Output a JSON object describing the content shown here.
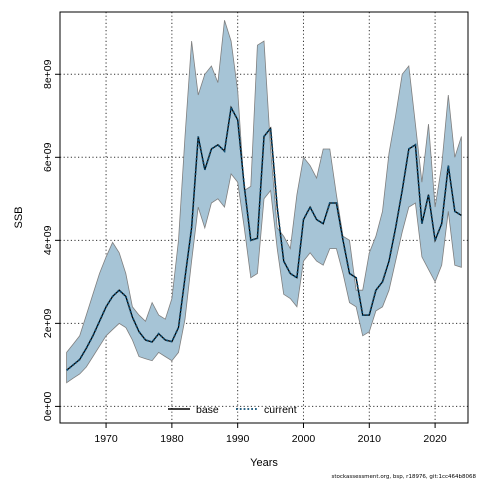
{
  "chart_data": {
    "type": "area",
    "xlabel": "Years",
    "ylabel": "SSB",
    "xlim": [
      1963,
      2025
    ],
    "ylim": [
      -400000000,
      9500000000
    ],
    "x_ticks": [
      1970,
      1980,
      1990,
      2000,
      2010,
      2020
    ],
    "x_tick_labels": [
      "1970",
      "1980",
      "1990",
      "2000",
      "2010",
      "2020"
    ],
    "y_ticks": [
      0,
      2000000000,
      4000000000,
      6000000000,
      8000000000
    ],
    "y_tick_labels": [
      "0e+00",
      "2e+09",
      "4e+09",
      "6e+09",
      "8e+09"
    ],
    "grid": true,
    "legend": {
      "placement": "bottom-center",
      "entries": [
        {
          "label": "base",
          "color": "#000000",
          "style": "solid"
        },
        {
          "label": "current",
          "color": "#0d4d73",
          "style": "dotted"
        }
      ]
    },
    "band_color": "#a6c4d6",
    "band_edge_color": "#7f7f7f",
    "x": [
      1964,
      1965,
      1966,
      1967,
      1968,
      1969,
      1970,
      1971,
      1972,
      1973,
      1974,
      1975,
      1976,
      1977,
      1978,
      1979,
      1980,
      1981,
      1982,
      1983,
      1984,
      1985,
      1986,
      1987,
      1988,
      1989,
      1990,
      1991,
      1992,
      1993,
      1994,
      1995,
      1996,
      1997,
      1998,
      1999,
      2000,
      2001,
      2002,
      2003,
      2004,
      2005,
      2006,
      2007,
      2008,
      2009,
      2010,
      2011,
      2012,
      2013,
      2014,
      2015,
      2016,
      2017,
      2018,
      2019,
      2020,
      2021,
      2022,
      2023,
      2024
    ],
    "series": [
      {
        "name": "base",
        "style": "solid",
        "color": "#000000",
        "values": [
          870000000,
          1000000000,
          1130000000,
          1400000000,
          1700000000,
          2050000000,
          2400000000,
          2650000000,
          2800000000,
          2650000000,
          2150000000,
          1800000000,
          1600000000,
          1550000000,
          1750000000,
          1600000000,
          1560000000,
          1900000000,
          3100000000,
          4300000000,
          6500000000,
          5700000000,
          6200000000,
          6300000000,
          6150000000,
          7200000000,
          6900000000,
          5300000000,
          4000000000,
          4050000000,
          6500000000,
          6700000000,
          4800000000,
          3500000000,
          3200000000,
          3100000000,
          4500000000,
          4800000000,
          4500000000,
          4400000000,
          4900000000,
          4900000000,
          4000000000,
          3200000000,
          3100000000,
          2200000000,
          2200000000,
          2800000000,
          3000000000,
          3500000000,
          4300000000,
          5200000000,
          6200000000,
          6300000000,
          4400000000,
          5100000000,
          4000000000,
          4400000000,
          5800000000,
          4700000000,
          4600000000
        ]
      },
      {
        "name": "current",
        "style": "dotted",
        "color": "#0d4d73",
        "values": [
          870000000,
          1000000000,
          1130000000,
          1400000000,
          1700000000,
          2050000000,
          2400000000,
          2650000000,
          2800000000,
          2650000000,
          2150000000,
          1800000000,
          1600000000,
          1550000000,
          1750000000,
          1600000000,
          1560000000,
          1900000000,
          3100000000,
          4300000000,
          6500000000,
          5700000000,
          6200000000,
          6300000000,
          6150000000,
          7200000000,
          6900000000,
          5300000000,
          4000000000,
          4050000000,
          6500000000,
          6700000000,
          4800000000,
          3500000000,
          3200000000,
          3100000000,
          4500000000,
          4800000000,
          4500000000,
          4400000000,
          4900000000,
          4900000000,
          4000000000,
          3200000000,
          3100000000,
          2200000000,
          2200000000,
          2800000000,
          3000000000,
          3500000000,
          4300000000,
          5200000000,
          6200000000,
          6300000000,
          4400000000,
          5100000000,
          4000000000,
          4400000000,
          5800000000,
          4700000000,
          4600000000
        ]
      },
      {
        "name": "upper",
        "values": [
          1300000000,
          1500000000,
          1700000000,
          2200000000,
          2700000000,
          3200000000,
          3600000000,
          3950000000,
          3700000000,
          3200000000,
          2400000000,
          2200000000,
          2050000000,
          2500000000,
          2200000000,
          2100000000,
          2600000000,
          4000000000,
          6500000000,
          8800000000,
          7500000000,
          8000000000,
          8200000000,
          7800000000,
          9300000000,
          8800000000,
          7600000000,
          5200000000,
          5300000000,
          8700000000,
          8800000000,
          6200000000,
          4300000000,
          4100000000,
          3800000000,
          5100000000,
          6000000000,
          5800000000,
          5500000000,
          6200000000,
          6200000000,
          5100000000,
          4100000000,
          4000000000,
          2800000000,
          2800000000,
          3700000000,
          4100000000,
          4700000000,
          6100000000,
          7000000000,
          8000000000,
          8200000000,
          6800000000,
          5400000000,
          6800000000,
          4800000000,
          5800000000,
          7500000000,
          6000000000,
          6500000000
        ]
      },
      {
        "name": "lower",
        "values": [
          570000000,
          680000000,
          780000000,
          950000000,
          1200000000,
          1450000000,
          1700000000,
          1850000000,
          2000000000,
          1900000000,
          1600000000,
          1200000000,
          1150000000,
          1100000000,
          1300000000,
          1200000000,
          1100000000,
          1300000000,
          2100000000,
          3500000000,
          4800000000,
          4300000000,
          4900000000,
          5000000000,
          4800000000,
          5600000000,
          5400000000,
          4300000000,
          3100000000,
          3200000000,
          5000000000,
          5200000000,
          3800000000,
          2700000000,
          2600000000,
          2400000000,
          3500000000,
          3700000000,
          3500000000,
          3400000000,
          3800000000,
          3800000000,
          3200000000,
          2500000000,
          2400000000,
          1700000000,
          1800000000,
          2300000000,
          2400000000,
          2800000000,
          3500000000,
          4200000000,
          4800000000,
          4900000000,
          3600000000,
          3300000000,
          3000000000,
          3400000000,
          4700000000,
          3400000000,
          3350000000
        ]
      }
    ]
  },
  "footer": "stockassessment.org, bsp, r18976, git:1cc464b8068"
}
